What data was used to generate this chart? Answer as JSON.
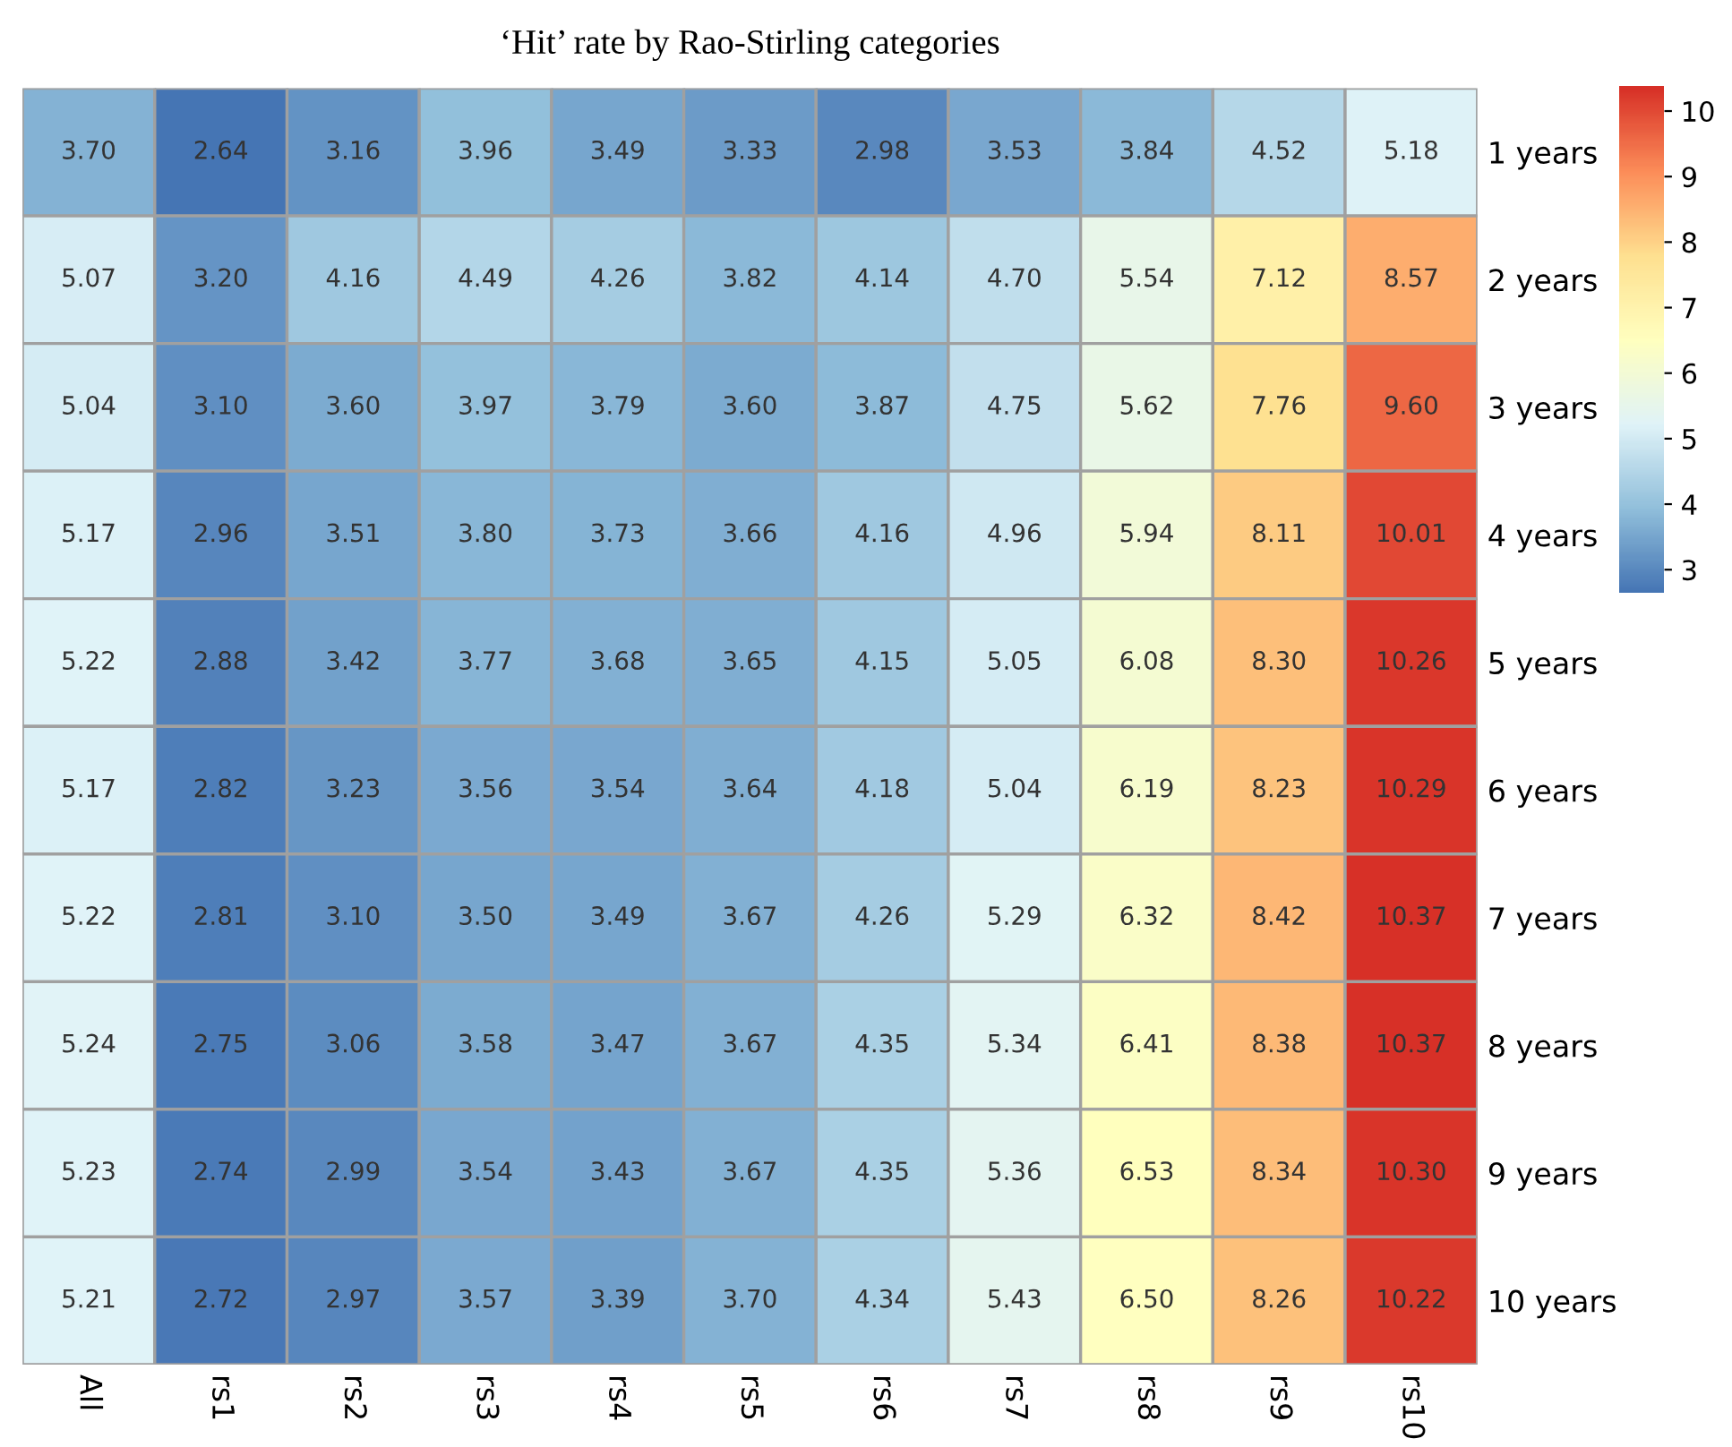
{
  "chart_data": {
    "type": "heatmap",
    "title": "‘Hit’ rate by Rao-Stirling categories",
    "categories": [
      "All",
      "rs1",
      "rs2",
      "rs3",
      "rs4",
      "rs5",
      "rs6",
      "rs7",
      "rs8",
      "rs9",
      "rs10"
    ],
    "y_categories": [
      "1 years",
      "2 years",
      "3 years",
      "4 years",
      "5 years",
      "6 years",
      "7 years",
      "8 years",
      "9 years",
      "10 years"
    ],
    "cells": [
      [
        3.7,
        2.64,
        3.16,
        3.96,
        3.49,
        3.33,
        2.98,
        3.53,
        3.84,
        4.52,
        5.18
      ],
      [
        5.07,
        3.2,
        4.16,
        4.49,
        4.26,
        3.82,
        4.14,
        4.7,
        5.54,
        7.12,
        8.57
      ],
      [
        5.04,
        3.1,
        3.6,
        3.97,
        3.79,
        3.6,
        3.87,
        4.75,
        5.62,
        7.76,
        9.6
      ],
      [
        5.17,
        2.96,
        3.51,
        3.8,
        3.73,
        3.66,
        4.16,
        4.96,
        5.94,
        8.11,
        10.01
      ],
      [
        5.22,
        2.88,
        3.42,
        3.77,
        3.68,
        3.65,
        4.15,
        5.05,
        6.08,
        8.3,
        10.26
      ],
      [
        5.17,
        2.82,
        3.23,
        3.56,
        3.54,
        3.64,
        4.18,
        5.04,
        6.19,
        8.23,
        10.29
      ],
      [
        5.22,
        2.81,
        3.1,
        3.5,
        3.49,
        3.67,
        4.26,
        5.29,
        6.32,
        8.42,
        10.37
      ],
      [
        5.24,
        2.75,
        3.06,
        3.58,
        3.47,
        3.67,
        4.35,
        5.34,
        6.41,
        8.38,
        10.37
      ],
      [
        5.23,
        2.74,
        2.99,
        3.54,
        3.43,
        3.67,
        4.35,
        5.36,
        6.53,
        8.34,
        10.3
      ],
      [
        5.21,
        2.72,
        2.97,
        3.57,
        3.39,
        3.7,
        4.34,
        5.43,
        6.5,
        8.26,
        10.22
      ]
    ],
    "cell_labels": [
      [
        "3.70",
        "2.64",
        "3.16",
        "3.96",
        "3.49",
        "3.33",
        "2.98",
        "3.53",
        "3.84",
        "4.52",
        "5.18"
      ],
      [
        "5.07",
        "3.20",
        "4.16",
        "4.49",
        "4.26",
        "3.82",
        "4.14",
        "4.70",
        "5.54",
        "7.12",
        "8.57"
      ],
      [
        "5.04",
        "3.10",
        "3.60",
        "3.97",
        "3.79",
        "3.60",
        "3.87",
        "4.75",
        "5.62",
        "7.76",
        "9.60"
      ],
      [
        "5.17",
        "2.96",
        "3.51",
        "3.80",
        "3.73",
        "3.66",
        "4.16",
        "4.96",
        "5.94",
        "8.11",
        "10.01"
      ],
      [
        "5.22",
        "2.88",
        "3.42",
        "3.77",
        "3.68",
        "3.65",
        "4.15",
        "5.05",
        "6.08",
        "8.30",
        "10.26"
      ],
      [
        "5.17",
        "2.82",
        "3.23",
        "3.56",
        "3.54",
        "3.64",
        "4.18",
        "5.04",
        "6.19",
        "8.23",
        "10.29"
      ],
      [
        "5.22",
        "2.81",
        "3.10",
        "3.50",
        "3.49",
        "3.67",
        "4.26",
        "5.29",
        "6.32",
        "8.42",
        "10.37"
      ],
      [
        "5.24",
        "2.75",
        "3.06",
        "3.58",
        "3.47",
        "3.67",
        "4.35",
        "5.34",
        "6.41",
        "8.38",
        "10.37"
      ],
      [
        "5.23",
        "2.74",
        "2.99",
        "3.54",
        "3.43",
        "3.67",
        "4.35",
        "5.36",
        "6.53",
        "8.34",
        "10.30"
      ],
      [
        "5.21",
        "2.72",
        "2.97",
        "3.57",
        "3.39",
        "3.70",
        "4.34",
        "5.43",
        "6.50",
        "8.26",
        "10.22"
      ]
    ],
    "clim": [
      2.64,
      10.37
    ],
    "cticks": [
      3,
      4,
      5,
      6,
      7,
      8,
      9,
      10
    ]
  }
}
